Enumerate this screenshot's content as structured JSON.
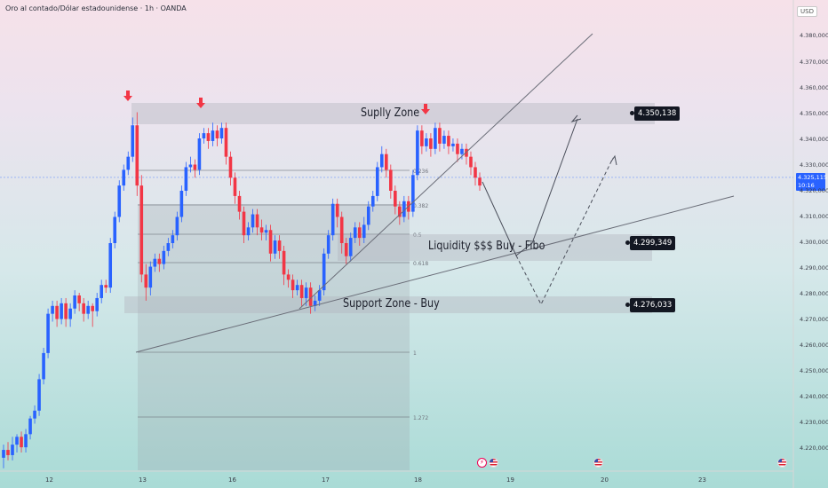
{
  "header": {
    "title": "Oro al contado/Dólar estadounidense · 1h · OANDA",
    "currency": "USD"
  },
  "current_price": {
    "value": "4.325,115",
    "countdown": "10:16"
  },
  "zones": {
    "supply": "Suplly Zone",
    "liquidity": "Liquidity $$$ Buy - Fibo",
    "support": "Support Zone - Buy"
  },
  "price_tags": {
    "supply": "4.350,138",
    "liquidity": "4.299,349",
    "support": "4.276,033"
  },
  "fib_labels": [
    "0.236",
    "0.382",
    "0.5",
    "0.618",
    "1",
    "1.272"
  ],
  "colors": {
    "up": "#2962ff",
    "down": "#f23645",
    "zone": "#b2b5be",
    "marker": "#f23645",
    "current": "#2962ff"
  },
  "icons": {
    "marker": "down-arrow-icon",
    "event": "us-flag-icon",
    "flash": "flash-icon"
  },
  "chart_data": {
    "type": "candlestick",
    "title": "Oro al contado/Dólar estadounidense · 1h · OANDA",
    "y_ticks": [
      "4.380,000",
      "4.370,000",
      "4.360,000",
      "4.350,000",
      "4.340,000",
      "4.330,000",
      "4.320,000",
      "4.310,000",
      "4.300,000",
      "4.290,000",
      "4.280,000",
      "4.270,000",
      "4.260,000",
      "4.250,000",
      "4.240,000",
      "4.230,000",
      "4.220,000"
    ],
    "x_ticks": [
      "12",
      "13",
      "16",
      "17",
      "18",
      "19",
      "20",
      "23"
    ],
    "ylim": [
      4213,
      4388
    ],
    "candles": [
      [
        4218,
        4221,
        4214,
        4223
      ],
      [
        4221,
        4219,
        4217,
        4224
      ],
      [
        4219,
        4223,
        4217,
        4226
      ],
      [
        4223,
        4226,
        4220,
        4227
      ],
      [
        4226,
        4222,
        4220,
        4228
      ],
      [
        4222,
        4227,
        4220,
        4229
      ],
      [
        4227,
        4233,
        4225,
        4234
      ],
      [
        4233,
        4236,
        4231,
        4238
      ],
      [
        4236,
        4248,
        4234,
        4250
      ],
      [
        4248,
        4258,
        4246,
        4260
      ],
      [
        4258,
        4273,
        4256,
        4275
      ],
      [
        4273,
        4276,
        4270,
        4278
      ],
      [
        4276,
        4271,
        4268,
        4278
      ],
      [
        4271,
        4277,
        4269,
        4279
      ],
      [
        4277,
        4271,
        4268,
        4279
      ],
      [
        4271,
        4275,
        4268,
        4277
      ],
      [
        4275,
        4280,
        4273,
        4282
      ],
      [
        4280,
        4277,
        4274,
        4281
      ],
      [
        4277,
        4273,
        4270,
        4279
      ],
      [
        4273,
        4276,
        4271,
        4278
      ],
      [
        4276,
        4274,
        4268,
        4277
      ],
      [
        4274,
        4279,
        4272,
        4281
      ],
      [
        4279,
        4284,
        4277,
        4286
      ],
      [
        4284,
        4283,
        4281,
        4286
      ],
      [
        4283,
        4300,
        4281,
        4302
      ],
      [
        4300,
        4310,
        4298,
        4312
      ],
      [
        4310,
        4322,
        4308,
        4324
      ],
      [
        4322,
        4328,
        4320,
        4330
      ],
      [
        4328,
        4333,
        4326,
        4335
      ],
      [
        4333,
        4345,
        4331,
        4348
      ],
      [
        4345,
        4322,
        4318,
        4350
      ],
      [
        4322,
        4288,
        4285,
        4326
      ],
      [
        4288,
        4283,
        4278,
        4292
      ],
      [
        4283,
        4291,
        4280,
        4293
      ],
      [
        4291,
        4294,
        4289,
        4296
      ],
      [
        4294,
        4292,
        4289,
        4296
      ],
      [
        4292,
        4297,
        4290,
        4299
      ],
      [
        4297,
        4300,
        4295,
        4302
      ],
      [
        4300,
        4303,
        4298,
        4305
      ],
      [
        4303,
        4310,
        4301,
        4312
      ],
      [
        4310,
        4320,
        4308,
        4322
      ],
      [
        4320,
        4329,
        4318,
        4331
      ],
      [
        4329,
        4330,
        4327,
        4333
      ],
      [
        4330,
        4328,
        4325,
        4332
      ],
      [
        4328,
        4340,
        4326,
        4342
      ],
      [
        4340,
        4342,
        4338,
        4344
      ],
      [
        4342,
        4339,
        4336,
        4344
      ],
      [
        4339,
        4343,
        4337,
        4346
      ],
      [
        4343,
        4340,
        4337,
        4345
      ],
      [
        4340,
        4344,
        4338,
        4346
      ],
      [
        4344,
        4333,
        4330,
        4346
      ],
      [
        4333,
        4325,
        4322,
        4335
      ],
      [
        4325,
        4318,
        4315,
        4327
      ],
      [
        4318,
        4312,
        4309,
        4320
      ],
      [
        4312,
        4303,
        4300,
        4314
      ],
      [
        4303,
        4306,
        4301,
        4308
      ],
      [
        4306,
        4311,
        4304,
        4313
      ],
      [
        4311,
        4306,
        4303,
        4313
      ],
      [
        4306,
        4304,
        4301,
        4309
      ],
      [
        4304,
        4305,
        4301,
        4307
      ],
      [
        4305,
        4296,
        4293,
        4307
      ],
      [
        4296,
        4301,
        4294,
        4303
      ],
      [
        4301,
        4297,
        4294,
        4303
      ],
      [
        4297,
        4288,
        4284,
        4299
      ],
      [
        4288,
        4286,
        4283,
        4290
      ],
      [
        4286,
        4282,
        4279,
        4288
      ],
      [
        4282,
        4284,
        4280,
        4286
      ],
      [
        4284,
        4279,
        4276,
        4286
      ],
      [
        4279,
        4283,
        4276,
        4285
      ],
      [
        4283,
        4276,
        4273,
        4285
      ],
      [
        4276,
        4278,
        4274,
        4280
      ],
      [
        4278,
        4282,
        4276,
        4284
      ],
      [
        4282,
        4296,
        4280,
        4298
      ],
      [
        4296,
        4303,
        4294,
        4305
      ],
      [
        4303,
        4315,
        4301,
        4317
      ],
      [
        4315,
        4310,
        4306,
        4317
      ],
      [
        4310,
        4300,
        4296,
        4312
      ],
      [
        4300,
        4295,
        4292,
        4302
      ],
      [
        4295,
        4302,
        4293,
        4304
      ],
      [
        4302,
        4306,
        4300,
        4308
      ],
      [
        4306,
        4302,
        4299,
        4308
      ],
      [
        4302,
        4307,
        4300,
        4310
      ],
      [
        4307,
        4314,
        4305,
        4316
      ],
      [
        4314,
        4318,
        4312,
        4320
      ],
      [
        4318,
        4329,
        4316,
        4331
      ],
      [
        4329,
        4334,
        4327,
        4337
      ],
      [
        4334,
        4328,
        4325,
        4336
      ],
      [
        4328,
        4320,
        4317,
        4330
      ],
      [
        4320,
        4314,
        4311,
        4322
      ],
      [
        4314,
        4310,
        4307,
        4316
      ],
      [
        4310,
        4316,
        4308,
        4318
      ],
      [
        4316,
        4312,
        4309,
        4318
      ],
      [
        4312,
        4326,
        4310,
        4328
      ],
      [
        4326,
        4343,
        4324,
        4345
      ],
      [
        4343,
        4337,
        4334,
        4345
      ],
      [
        4337,
        4340,
        4335,
        4342
      ],
      [
        4340,
        4336,
        4333,
        4342
      ],
      [
        4336,
        4344,
        4334,
        4346
      ],
      [
        4344,
        4338,
        4335,
        4346
      ],
      [
        4338,
        4341,
        4336,
        4343
      ],
      [
        4341,
        4337,
        4334,
        4343
      ],
      [
        4337,
        4338,
        4335,
        4340
      ],
      [
        4338,
        4334,
        4331,
        4340
      ],
      [
        4334,
        4336,
        4332,
        4338
      ],
      [
        4336,
        4333,
        4330,
        4338
      ],
      [
        4333,
        4329,
        4326,
        4335
      ],
      [
        4329,
        4325,
        4322,
        4331
      ],
      [
        4325,
        4322,
        4320,
        4327
      ]
    ]
  }
}
